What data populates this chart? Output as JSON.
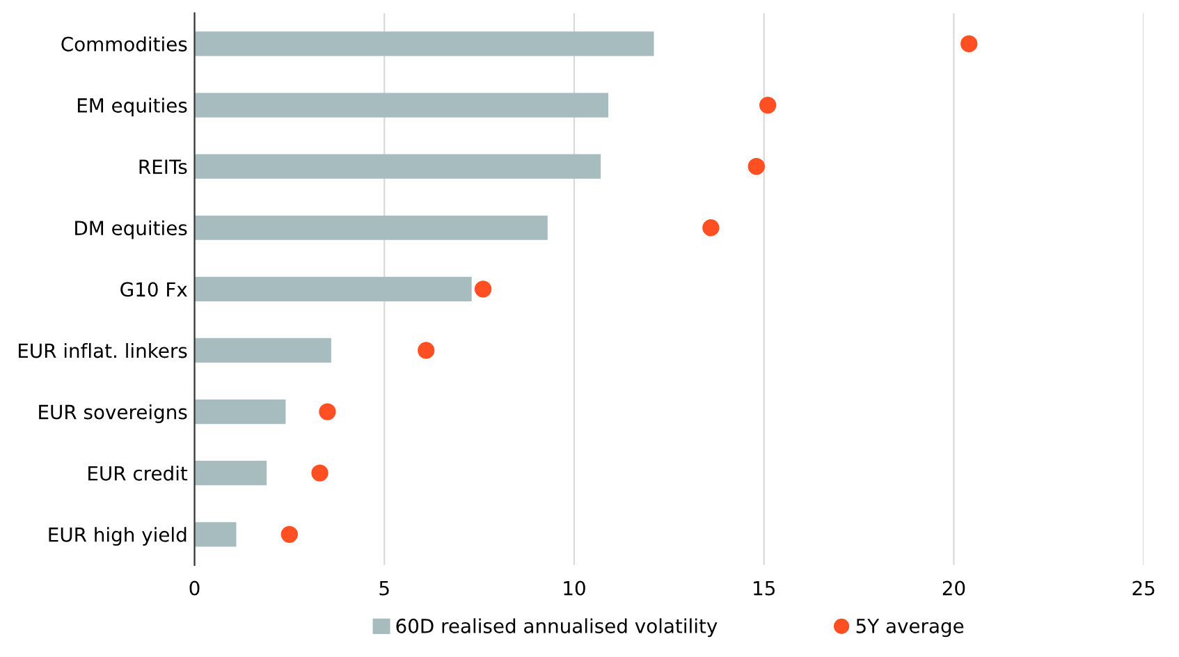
{
  "chart_data": {
    "type": "bar",
    "orientation": "horizontal",
    "categories": [
      "Commodities",
      "EM equities",
      "REITs",
      "DM equities",
      "G10 Fx",
      "EUR inflat. linkers",
      "EUR sovereigns",
      "EUR credit",
      "EUR high yield"
    ],
    "series": [
      {
        "name": "60D realised annualised volatility",
        "color": "#a7bcbf",
        "values": [
          12.1,
          10.9,
          10.7,
          9.3,
          7.3,
          3.6,
          2.4,
          1.9,
          1.1
        ]
      },
      {
        "name": "5Y average",
        "type": "scatter",
        "color": "#ff4f23",
        "values": [
          20.4,
          15.1,
          14.8,
          13.6,
          7.6,
          6.1,
          3.5,
          3.3,
          2.5
        ]
      }
    ],
    "xlim": [
      0,
      25
    ],
    "xticks": [
      0,
      5,
      10,
      15,
      20,
      25
    ],
    "grid": "x",
    "legend": "bottom",
    "marker": "circle"
  }
}
